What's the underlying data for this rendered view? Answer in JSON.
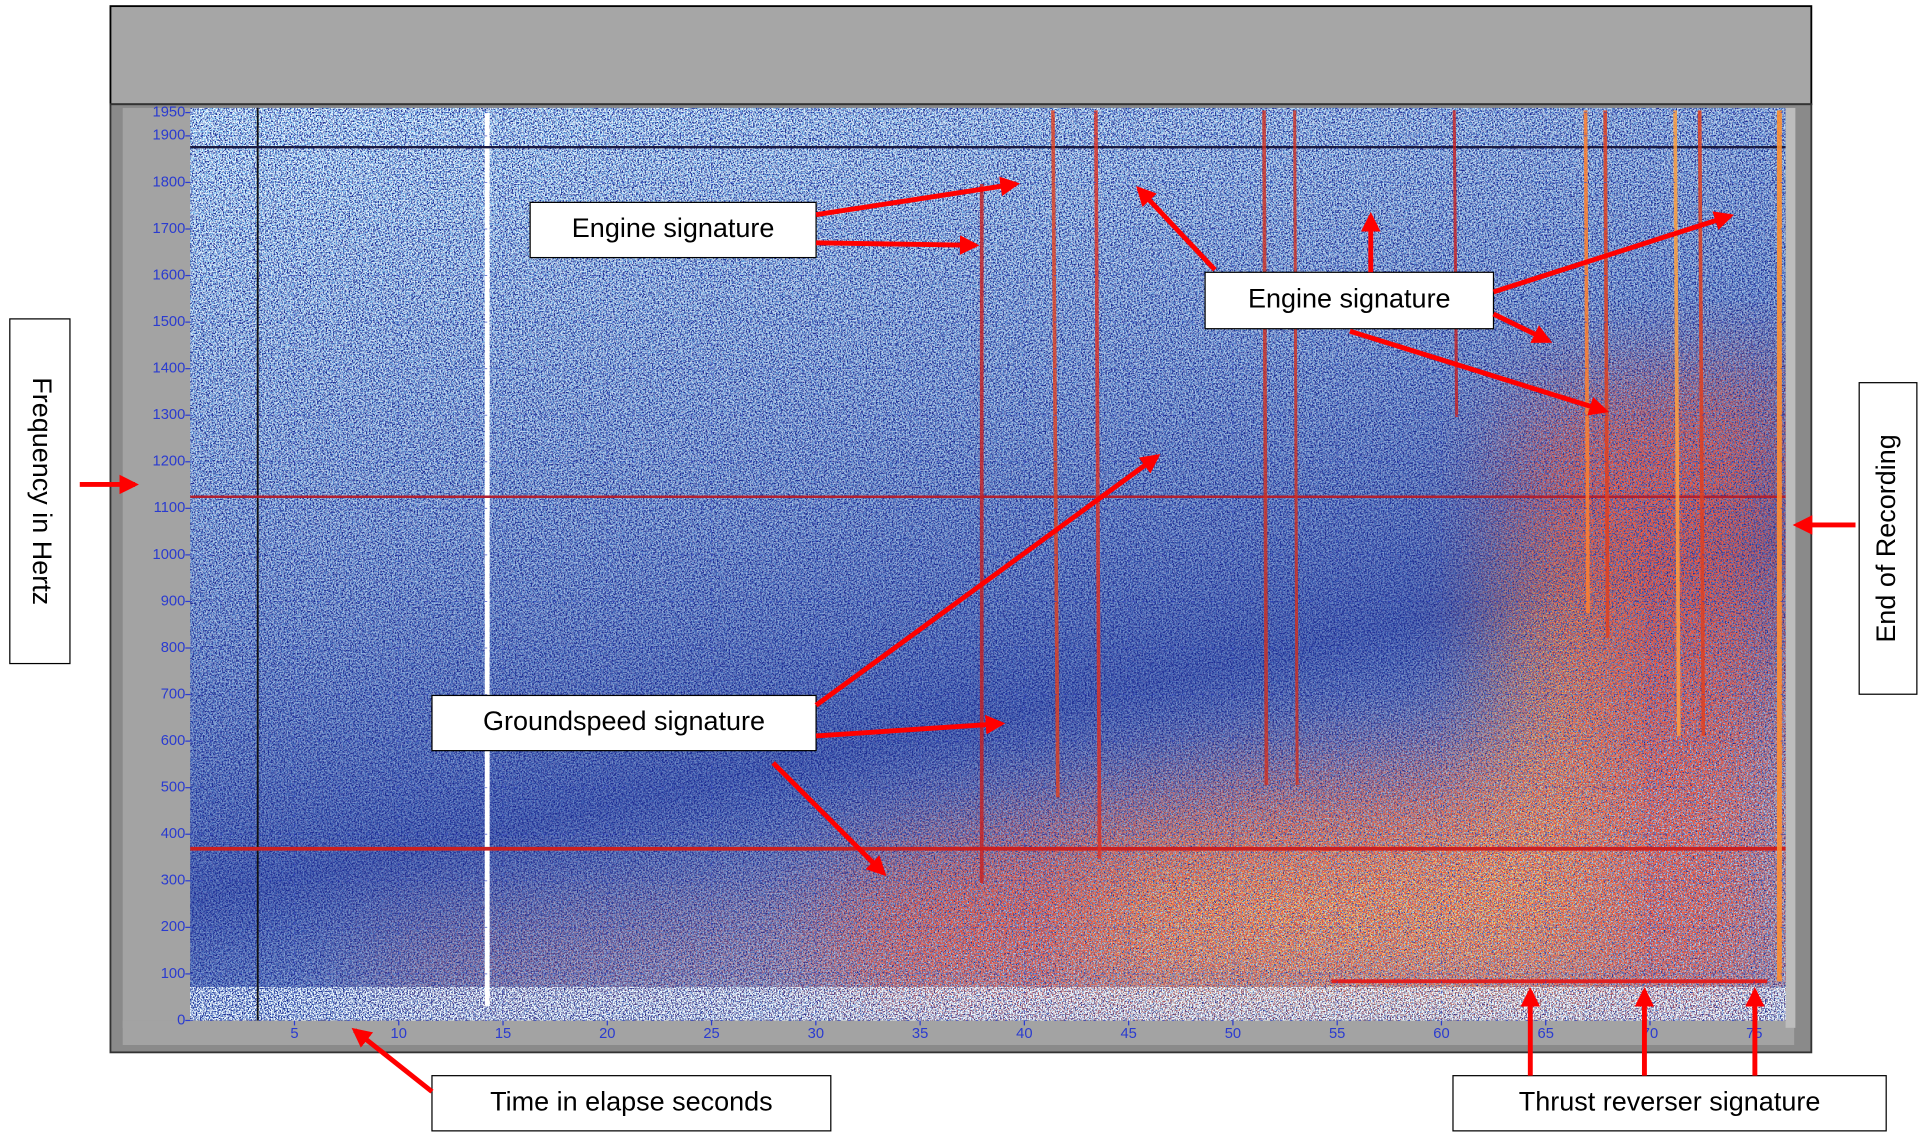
{
  "chart_data": {
    "type": "spectrogram",
    "x_label": "Time in elapse seconds",
    "y_label": "Frequency in Hertz",
    "xlim": [
      0,
      76.5
    ],
    "ylim": [
      0,
      1960
    ],
    "xticks": [
      5,
      10,
      15,
      20,
      25,
      30,
      35,
      40,
      45,
      50,
      55,
      60,
      65,
      70,
      75
    ],
    "yticks": [
      0,
      100,
      200,
      300,
      400,
      500,
      600,
      700,
      800,
      900,
      1000,
      1100,
      1200,
      1300,
      1400,
      1500,
      1600,
      1700,
      1800,
      1900,
      1950
    ],
    "grid": true,
    "annotations": [
      "Engine signature",
      "Engine signature",
      "Groundspeed signature",
      "Thrust reverser signature",
      "End of Recording"
    ]
  }
}
